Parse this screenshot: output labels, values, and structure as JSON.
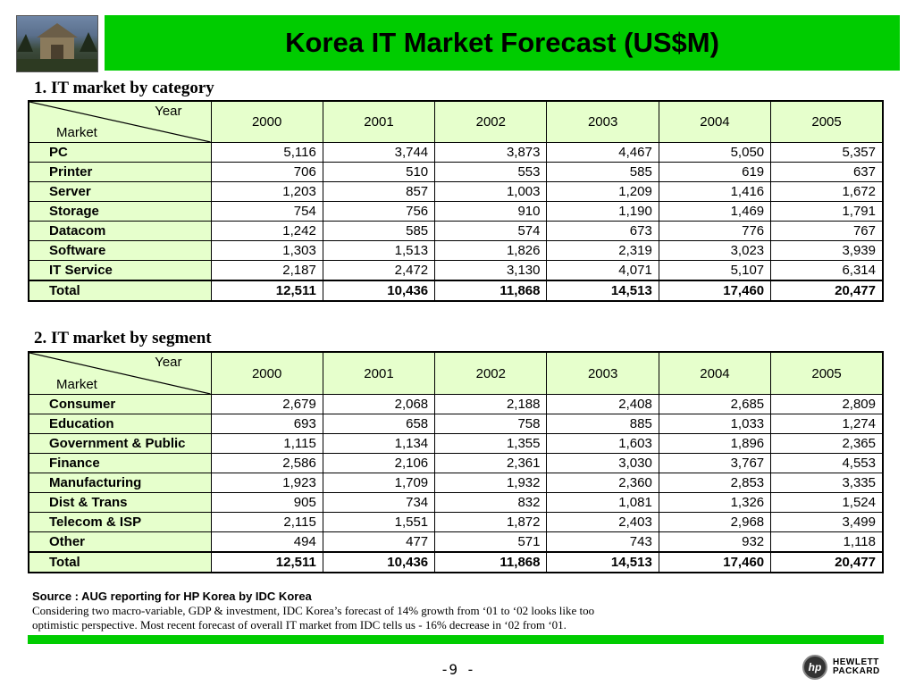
{
  "title": "Korea IT Market Forecast (US$M)",
  "section1": {
    "heading": "1. IT market by category",
    "corner_year": "Year",
    "corner_market": "Market",
    "years": [
      "2000",
      "2001",
      "2002",
      "2003",
      "2004",
      "2005"
    ],
    "rows": [
      {
        "name": "PC",
        "values": [
          "5,116",
          "3,744",
          "3,873",
          "4,467",
          "5,050",
          "5,357"
        ]
      },
      {
        "name": "Printer",
        "values": [
          "706",
          "510",
          "553",
          "585",
          "619",
          "637"
        ]
      },
      {
        "name": "Server",
        "values": [
          "1,203",
          "857",
          "1,003",
          "1,209",
          "1,416",
          "1,672"
        ]
      },
      {
        "name": "Storage",
        "values": [
          "754",
          "756",
          "910",
          "1,190",
          "1,469",
          "1,791"
        ]
      },
      {
        "name": "Datacom",
        "values": [
          "1,242",
          "585",
          "574",
          "673",
          "776",
          "767"
        ]
      },
      {
        "name": "Software",
        "values": [
          "1,303",
          "1,513",
          "1,826",
          "2,319",
          "3,023",
          "3,939"
        ]
      },
      {
        "name": "IT Service",
        "values": [
          "2,187",
          "2,472",
          "3,130",
          "4,071",
          "5,107",
          "6,314"
        ]
      }
    ],
    "total": {
      "name": "Total",
      "values": [
        "12,511",
        "10,436",
        "11,868",
        "14,513",
        "17,460",
        "20,477"
      ]
    }
  },
  "section2": {
    "heading": "2. IT market by segment",
    "corner_year": "Year",
    "corner_market": "Market",
    "years": [
      "2000",
      "2001",
      "2002",
      "2003",
      "2004",
      "2005"
    ],
    "rows": [
      {
        "name": "Consumer",
        "values": [
          "2,679",
          "2,068",
          "2,188",
          "2,408",
          "2,685",
          "2,809"
        ]
      },
      {
        "name": "Education",
        "values": [
          "693",
          "658",
          "758",
          "885",
          "1,033",
          "1,274"
        ]
      },
      {
        "name": "Government & Public",
        "values": [
          "1,115",
          "1,134",
          "1,355",
          "1,603",
          "1,896",
          "2,365"
        ]
      },
      {
        "name": "Finance",
        "values": [
          "2,586",
          "2,106",
          "2,361",
          "3,030",
          "3,767",
          "4,553"
        ]
      },
      {
        "name": "Manufacturing",
        "values": [
          "1,923",
          "1,709",
          "1,932",
          "2,360",
          "2,853",
          "3,335"
        ]
      },
      {
        "name": "Dist & Trans",
        "values": [
          "905",
          "734",
          "832",
          "1,081",
          "1,326",
          "1,524"
        ]
      },
      {
        "name": "Telecom & ISP",
        "values": [
          "2,115",
          "1,551",
          "1,872",
          "2,403",
          "2,968",
          "3,499"
        ]
      },
      {
        "name": "Other",
        "values": [
          "494",
          "477",
          "571",
          "743",
          "932",
          "1,118"
        ]
      }
    ],
    "total": {
      "name": "Total",
      "values": [
        "12,511",
        "10,436",
        "11,868",
        "14,513",
        "17,460",
        "20,477"
      ]
    }
  },
  "source": "Source : AUG reporting for HP Korea by IDC Korea",
  "note_line1": "Considering two macro-variable, GDP & investment, IDC Korea’s forecast of 14% growth from ‘01 to ‘02 looks like too",
  "note_line2": "optimistic perspective. Most recent forecast of overall IT market from IDC tells us - 16% decrease in ‘02 from ‘01.",
  "page_number": "-9 -",
  "logo": {
    "mark": "hp",
    "line1": "HEWLETT",
    "line2": "PACKARD"
  },
  "colors": {
    "title_bar": "#00cc00",
    "header_fill": "#e6ffcc",
    "bottom_bar": "#00cc00"
  }
}
